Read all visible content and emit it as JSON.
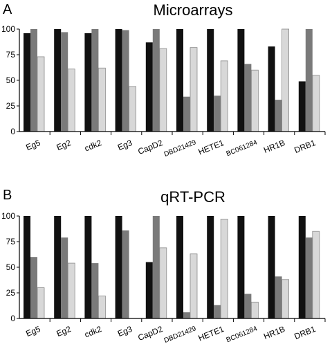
{
  "colors": {
    "series1": "#111111",
    "series2": "#7a7a7a",
    "series3": "#d8d8d8",
    "axis": "#000000"
  },
  "chart_data": [
    {
      "panel": "A",
      "title": "Microarrays",
      "type": "bar",
      "ylim": [
        0,
        100
      ],
      "yticks": [
        0,
        25,
        50,
        75,
        100
      ],
      "categories": [
        "Eg5",
        "Eg2",
        "cdk2",
        "Eg3",
        "CapD2",
        "DBD21429",
        "HETE1",
        "BC061284",
        "HR1B",
        "DRB1"
      ],
      "series": [
        {
          "values": [
            96,
            100,
            96,
            100,
            87,
            100,
            100,
            100,
            83,
            49
          ]
        },
        {
          "values": [
            100,
            97,
            100,
            99,
            100,
            34,
            35,
            66,
            31,
            100
          ]
        },
        {
          "values": [
            73,
            61,
            62,
            44,
            81,
            82,
            69,
            60,
            100,
            55
          ]
        }
      ]
    },
    {
      "panel": "B",
      "title": "qRT-PCR",
      "type": "bar",
      "ylim": [
        0,
        100
      ],
      "yticks": [
        0,
        25,
        50,
        75,
        100
      ],
      "categories": [
        "Eg5",
        "Eg2",
        "cdk2",
        "Eg3",
        "CapD2",
        "DBD21429",
        "HETE1",
        "BC061284",
        "HR1B",
        "DRB1"
      ],
      "series": [
        {
          "values": [
            100,
            100,
            100,
            100,
            55,
            100,
            100,
            100,
            100,
            100
          ]
        },
        {
          "values": [
            60,
            79,
            54,
            86,
            100,
            6,
            13,
            24,
            41,
            79
          ]
        },
        {
          "values": [
            30,
            54,
            22,
            0,
            69,
            63,
            97,
            16,
            38,
            85
          ]
        }
      ]
    }
  ]
}
